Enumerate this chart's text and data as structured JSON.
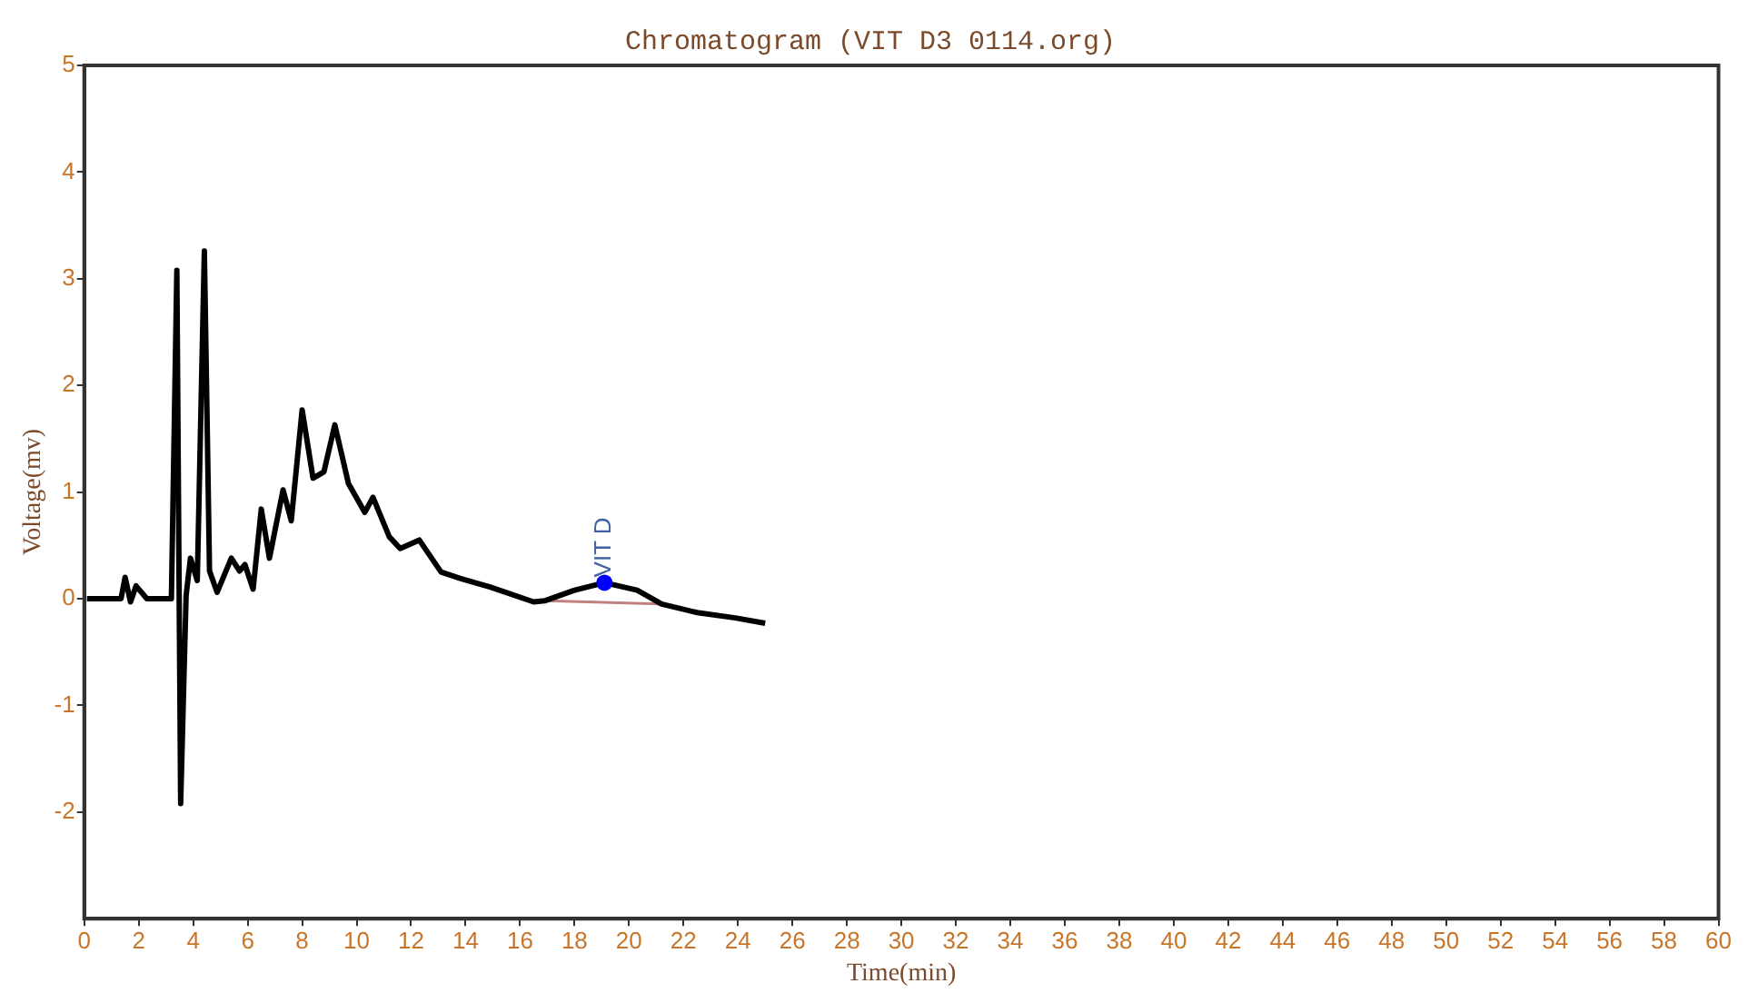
{
  "chart_data": {
    "type": "line",
    "title": "Chromatogram (VIT D3 0114.org)",
    "xlabel": "Time(min)",
    "ylabel": "Voltage(mv)",
    "xlim": [
      0,
      60
    ],
    "xticks": [
      0,
      2,
      4,
      6,
      8,
      10,
      12,
      14,
      16,
      18,
      20,
      22,
      24,
      26,
      28,
      30,
      32,
      34,
      36,
      38,
      40,
      42,
      44,
      46,
      48,
      50,
      52,
      54,
      56,
      58,
      60
    ],
    "ylim": [
      -3,
      5
    ],
    "yticks": [
      -2,
      -1,
      0,
      1,
      2,
      3,
      4,
      5
    ],
    "grid": false,
    "legend": false,
    "line_style": "solid",
    "series": [
      {
        "type": "line",
        "color": "#000000",
        "x": [
          0.1,
          1.35,
          1.5,
          1.7,
          1.9,
          2.3,
          3.2,
          3.4,
          3.54,
          3.74,
          3.9,
          4.15,
          4.41,
          4.6,
          4.88,
          5.4,
          5.7,
          5.9,
          6.2,
          6.5,
          6.8,
          7.3,
          7.6,
          8.0,
          8.4,
          8.8,
          9.2,
          9.7,
          10.3,
          10.6,
          11.2,
          11.6,
          12.3,
          13.1,
          13.8,
          14.9,
          16.5,
          16.9,
          18.0,
          19.1,
          20.3,
          21.2,
          22.5,
          23.9,
          25.0
        ],
        "values": [
          0,
          0,
          0.2,
          -0.03,
          0.12,
          0,
          0,
          3.08,
          -1.92,
          0.03,
          0.38,
          0.17,
          3.26,
          0.26,
          0.06,
          0.38,
          0.26,
          0.32,
          0.09,
          0.84,
          0.38,
          1.02,
          0.73,
          1.77,
          1.13,
          1.19,
          1.63,
          1.08,
          0.81,
          0.95,
          0.58,
          0.47,
          0.55,
          0.25,
          0.19,
          0.11,
          -0.03,
          -0.02,
          0.08,
          0.15,
          0.08,
          -0.05,
          -0.13,
          -0.18,
          -0.23
        ]
      },
      {
        "type": "line",
        "color": "#c08080",
        "x": [
          17.0,
          21.1
        ],
        "values": [
          -0.02,
          -0.05
        ]
      },
      {
        "type": "scatter",
        "color": "#0000ff",
        "marker": "circle",
        "x": [
          19.1
        ],
        "values": [
          0.15
        ]
      }
    ],
    "annotations": [
      {
        "text": "VIT D",
        "x": 19.1,
        "y": 0.15
      }
    ]
  }
}
